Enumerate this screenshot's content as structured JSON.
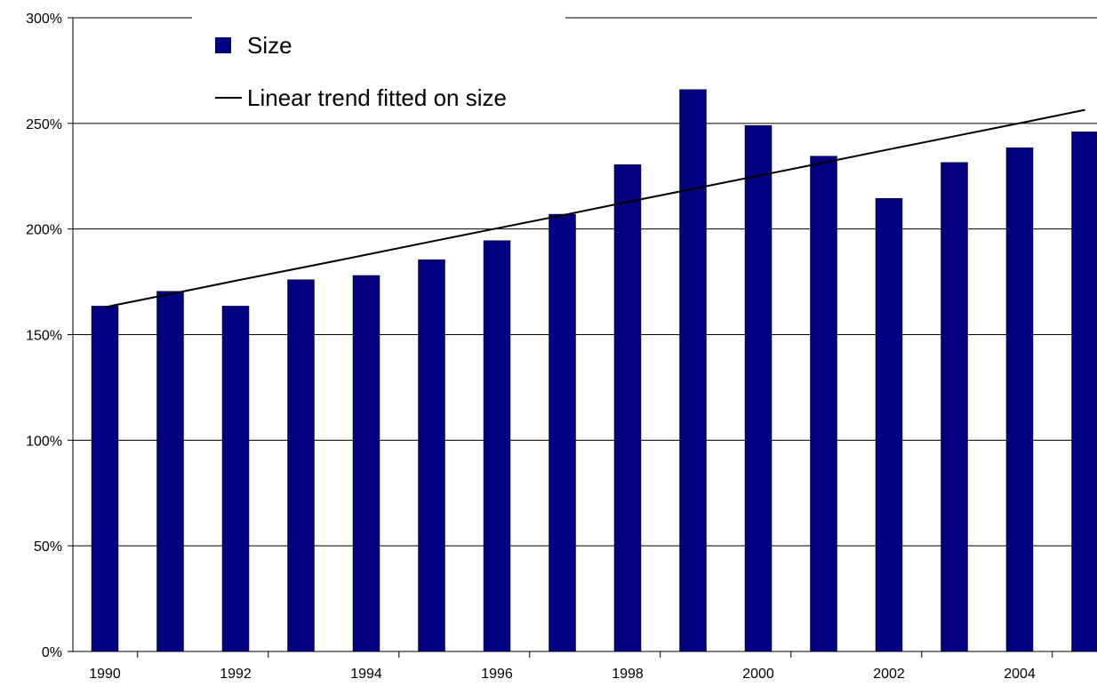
{
  "chart_data": {
    "type": "bar",
    "categories": [
      "1990",
      "1991",
      "1992",
      "1993",
      "1994",
      "1995",
      "1996",
      "1997",
      "1998",
      "1999",
      "2000",
      "2001",
      "2002",
      "2003",
      "2004",
      "2005"
    ],
    "x_tick_labels": [
      "1990",
      "1992",
      "1994",
      "1996",
      "1998",
      "2000",
      "2002",
      "2004"
    ],
    "series": [
      {
        "name": "Size",
        "type": "bar",
        "values": [
          163.5,
          170.5,
          163.5,
          176,
          178,
          185.5,
          194.5,
          207,
          230.5,
          266,
          249,
          234.5,
          214.5,
          231.5,
          238.5,
          246
        ]
      },
      {
        "name": "Linear trend fitted on size",
        "type": "line",
        "values": [
          163,
          169.2,
          175.5,
          181.6,
          187.8,
          194.1,
          200.3,
          206.5,
          212.8,
          219,
          225.2,
          231.4,
          237.7,
          243.9,
          250.1,
          256.4
        ]
      }
    ],
    "y_tick_labels": [
      "0%",
      "50%",
      "100%",
      "150%",
      "200%",
      "250%",
      "300%"
    ],
    "ylim": [
      0,
      300
    ],
    "y_unit": "%",
    "grid": "horizontal",
    "legend": "top-left",
    "colors": {
      "bar": "#000080",
      "trend": "#000000",
      "grid": "#000000"
    }
  }
}
